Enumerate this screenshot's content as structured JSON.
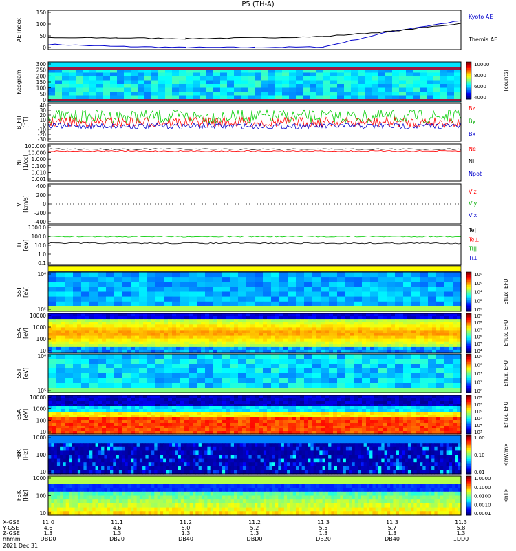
{
  "title": "P5 (TH-A)",
  "date_label": "2021 Dec 31",
  "x_ticks": [
    {
      "lines": [
        "11.0",
        "4.6",
        "1.3",
        "DBD0"
      ]
    },
    {
      "lines": [
        "11.1",
        "4.6",
        "1.3",
        "DB20"
      ]
    },
    {
      "lines": [
        "11.2",
        "5.0",
        "1.3",
        "DB40"
      ]
    },
    {
      "lines": [
        "11.2",
        "5.2",
        "1.3",
        "DBD0"
      ]
    },
    {
      "lines": [
        "11.3",
        "5.5",
        "1.3",
        "DB20"
      ]
    },
    {
      "lines": [
        "11.3",
        "5.7",
        "1.3",
        "DB40"
      ]
    },
    {
      "lines": [
        "11.3",
        "5.8",
        "1.3",
        "1DD0"
      ]
    }
  ],
  "x_row_labels": [
    "X-GSE",
    "Y-GSE",
    "Z-GSE",
    "hhmm"
  ],
  "panels": {
    "ae": {
      "ylabel": "AE Index",
      "ticks": [
        "150",
        "100",
        "50",
        "0"
      ],
      "legend": [
        {
          "text": "Kyoto AE",
          "color": "#0000cc"
        },
        {
          "text": "Themis AE",
          "color": "#000000"
        }
      ]
    },
    "keogram": {
      "ylabel": "Keogram",
      "ticks": [
        "300",
        "250",
        "200",
        "150",
        "100",
        "50",
        "0"
      ],
      "cbar_ticks": [
        "10000",
        "8000",
        "6000",
        "4000"
      ],
      "cbar_unit": "[counts]"
    },
    "bfield": {
      "ylabel": "B_FIT",
      "sub": "[nT]",
      "ticks": [
        "40",
        "30",
        "20",
        "10",
        "0",
        "-10",
        "-20",
        "-30"
      ],
      "legend": [
        {
          "text": "Bz",
          "color": "#ff0000"
        },
        {
          "text": "By",
          "color": "#00aa00"
        },
        {
          "text": "Bx",
          "color": "#0000cc"
        }
      ]
    },
    "density": {
      "ylabel": "Ni",
      "sub": "[1/cc]",
      "ticks": [
        "100.000",
        "10.000",
        "1.000",
        "0.100",
        "0.010",
        "0.001"
      ],
      "legend": [
        {
          "text": "Ne",
          "color": "#ff0000"
        },
        {
          "text": "Ni",
          "color": "#000000"
        },
        {
          "text": "Npot",
          "color": "#0000cc"
        }
      ]
    },
    "velocity": {
      "ylabel": "Vi",
      "sub": "[km/s]",
      "ticks": [
        "400",
        "200",
        "0",
        "-200",
        "-400"
      ],
      "legend": [
        {
          "text": "Viz",
          "color": "#ff0000"
        },
        {
          "text": "Viy",
          "color": "#00aa00"
        },
        {
          "text": "Vix",
          "color": "#0000cc"
        }
      ]
    },
    "temperature": {
      "ylabel": "Ti",
      "sub": "[eV]",
      "ticks": [
        "1000.0",
        "100.0",
        "10.0",
        "1.0",
        "0.1"
      ],
      "legend": [
        {
          "text": "Te||",
          "color": "#000000"
        },
        {
          "text": "Te⊥",
          "color": "#ff0000"
        },
        {
          "text": "Ti||",
          "color": "#00aa00"
        },
        {
          "text": "Ti⊥",
          "color": "#0000cc"
        }
      ]
    },
    "sst_e": {
      "ylabel": "SST",
      "sub": "[eV]",
      "ticks": [
        "10⁶",
        "10⁵"
      ],
      "cbar_ticks": [
        "10⁸",
        "10⁶",
        "10⁴",
        "10²",
        "10⁰"
      ],
      "cbar_unit": "Eflux, EFU"
    },
    "esa_e": {
      "ylabel": "ESA",
      "sub": "[eV]",
      "ticks": [
        "10000",
        "1000",
        "100",
        "10"
      ],
      "cbar_ticks": [
        "10⁹",
        "10⁸",
        "10⁷",
        "10⁶",
        "10⁵",
        "10⁴"
      ],
      "cbar_unit": "Eflux, EFU"
    },
    "sst_i": {
      "ylabel": "SST",
      "sub": "[eV]",
      "ticks": [
        "10⁶",
        "10⁵"
      ],
      "cbar_ticks": [
        "10⁸",
        "10⁶",
        "10⁴",
        "10²",
        "10⁰"
      ],
      "cbar_unit": "Eflux, EFU"
    },
    "esa_i": {
      "ylabel": "ESA",
      "sub": "[eV]",
      "ticks": [
        "10000",
        "1000",
        "100",
        "10"
      ],
      "cbar_ticks": [
        "10⁸",
        "10⁷",
        "10⁶",
        "10⁵",
        "10⁴",
        "10³"
      ],
      "cbar_unit": "Eflux, EFU"
    },
    "fbk_e": {
      "ylabel": "FBK",
      "sub": "[Hz]",
      "ticks": [
        "1000",
        "100",
        "10"
      ],
      "cbar_ticks": [
        "1.00",
        "0.10",
        "0.01"
      ],
      "cbar_unit": "<mV/m>"
    },
    "fbk_b": {
      "ylabel": "FBK",
      "sub": "[Hz]",
      "ticks": [
        "1000",
        "100",
        "10"
      ],
      "cbar_ticks": [
        "1.0000",
        "0.1000",
        "0.0100",
        "0.0010",
        "0.0001"
      ],
      "cbar_unit": "<nT>"
    }
  },
  "chart_data": {
    "type": "line",
    "title": "P5 (TH-A)",
    "x": [
      "DBD0",
      "DB20",
      "DB40",
      "DBD0",
      "DB20",
      "DB40",
      "1DD0"
    ],
    "series": [
      {
        "name": "Kyoto AE",
        "values": [
          20,
          12,
          8,
          8,
          10,
          70,
          110
        ]
      },
      {
        "name": "Themis AE",
        "values": [
          45,
          45,
          42,
          45,
          50,
          70,
          100
        ]
      }
    ],
    "ylabel": "AE Index",
    "ylim": [
      0,
      150
    ]
  }
}
